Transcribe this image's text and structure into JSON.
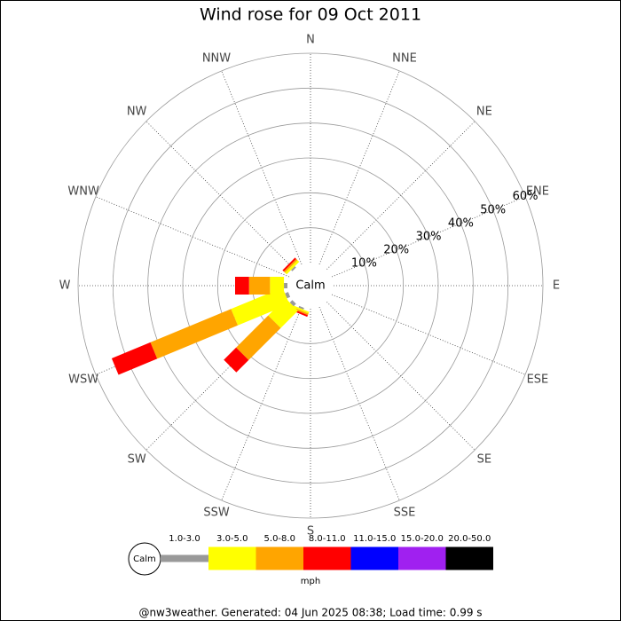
{
  "chart_data": {
    "type": "windrose",
    "title": "Wind rose for 09 Oct 2011",
    "categories": [
      "N",
      "NNE",
      "NE",
      "ENE",
      "E",
      "ESE",
      "SE",
      "SSE",
      "S",
      "SSW",
      "SW",
      "WSW",
      "W",
      "WNW",
      "NW",
      "NNW"
    ],
    "series": [
      {
        "name": "1.0-3.0",
        "color": "#999999",
        "values": [
          0,
          0,
          0,
          0,
          0,
          0,
          0,
          0,
          0,
          0.5,
          1,
          1,
          1,
          0,
          0.5,
          0
        ]
      },
      {
        "name": "3.0-5.0",
        "color": "#ffff00",
        "values": [
          0,
          0,
          0,
          0,
          0,
          0,
          0,
          0,
          0,
          0.5,
          7,
          16,
          4,
          0,
          0.7,
          0
        ]
      },
      {
        "name": "5.0-8.0",
        "color": "#ffa500",
        "values": [
          0,
          0,
          0,
          0,
          0,
          0,
          0,
          0,
          0,
          0.5,
          13,
          25,
          6,
          0,
          0.5,
          0
        ]
      },
      {
        "name": "8.0-11.0",
        "color": "#ff0000",
        "values": [
          0,
          0,
          0,
          0,
          0,
          0,
          0,
          0,
          0,
          0.5,
          5,
          12,
          4,
          0,
          0.5,
          0
        ]
      },
      {
        "name": "11.0-15.0",
        "color": "#0000ff",
        "values": [
          0,
          0,
          0,
          0,
          0,
          0,
          0,
          0,
          0,
          0,
          0,
          0,
          0,
          0,
          0,
          0
        ]
      },
      {
        "name": "15.0-20.0",
        "color": "#a020f0",
        "values": [
          0,
          0,
          0,
          0,
          0,
          0,
          0,
          0,
          0,
          0,
          0,
          0,
          0,
          0,
          0,
          0
        ]
      },
      {
        "name": "20.0-50.0",
        "color": "#000000",
        "values": [
          0,
          0,
          0,
          0,
          0,
          0,
          0,
          0,
          0,
          0,
          0,
          0,
          0,
          0,
          0,
          0
        ]
      }
    ],
    "rlim": [
      0,
      60
    ],
    "rticks": [
      {
        "value": 10,
        "label": "10%"
      },
      {
        "value": 20,
        "label": "20%"
      },
      {
        "value": 30,
        "label": "30%"
      },
      {
        "value": 40,
        "label": "40%"
      },
      {
        "value": 50,
        "label": "50%"
      },
      {
        "value": 60,
        "label": "60%"
      }
    ],
    "calm_label": "Calm",
    "unit": "mph",
    "footer": "@nw3weather. Generated: 04 Jun 2025 08:38; Load time: 0.99 s"
  }
}
